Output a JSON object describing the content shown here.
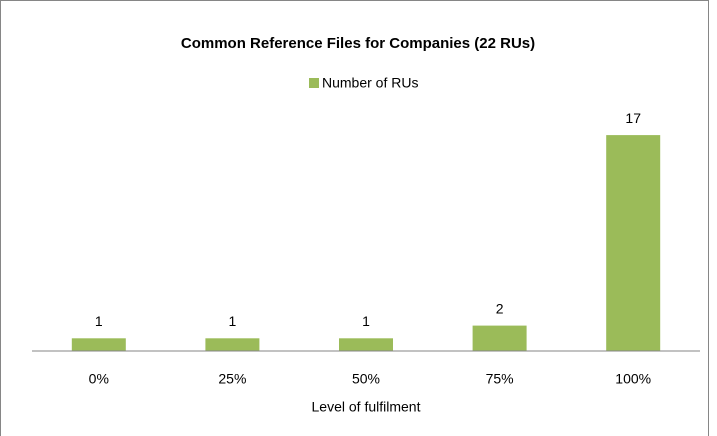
{
  "chart_data": {
    "type": "bar",
    "title": "Common Reference Files for Companies (22 RUs)",
    "x_label": "Level of fulfilment",
    "categories": [
      "0%",
      "25%",
      "50%",
      "75%",
      "100%"
    ],
    "series": [
      {
        "name": "Number of RUs",
        "color": "#9bbb59",
        "values": [
          1,
          1,
          1,
          2,
          17
        ]
      }
    ],
    "ylim": [
      0,
      20
    ],
    "legend": "top"
  }
}
